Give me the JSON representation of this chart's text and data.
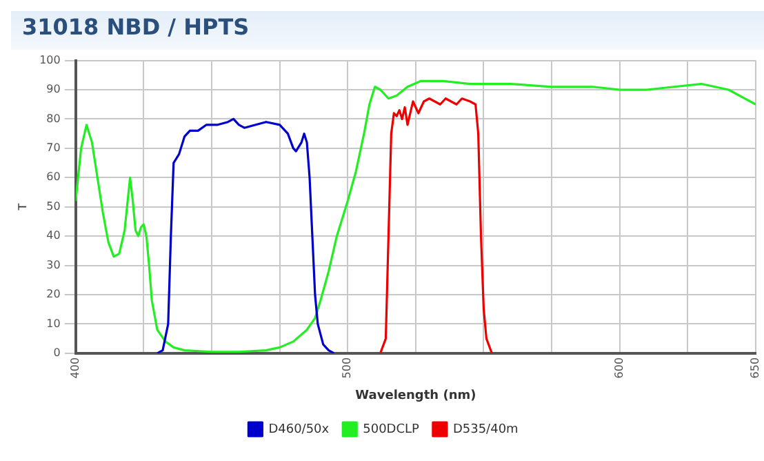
{
  "chart_data": {
    "type": "line",
    "title": "31018 NBD / HPTS",
    "xlabel": "Wavelength (nm)",
    "ylabel": "T",
    "xlim": [
      400,
      650
    ],
    "xticks": [
      400,
      {
        "value": 425,
        "label": null
      },
      {
        "value": 450,
        "label": null
      },
      {
        "value": 475,
        "label": null
      },
      500,
      {
        "value": 525,
        "label": null
      },
      {
        "value": 550,
        "label": null
      },
      {
        "value": 575,
        "label": null
      },
      600,
      {
        "value": 625,
        "label": null
      },
      650
    ],
    "ylim": [
      0,
      100
    ],
    "yticks": [
      0,
      10,
      20,
      30,
      40,
      50,
      60,
      70,
      80,
      90,
      100
    ],
    "grid": true,
    "legend": "bottom",
    "marker": "none",
    "line_style": "solid",
    "series": [
      {
        "name": "D460/50x",
        "color": "#0000cc",
        "x": [
          430,
          432,
          434,
          435,
          436,
          438,
          440,
          442,
          445,
          448,
          452,
          456,
          458,
          460,
          462,
          466,
          470,
          475,
          478,
          480,
          481,
          483,
          484,
          485,
          486,
          487,
          488,
          489,
          491,
          493,
          495
        ],
        "values": [
          0,
          1,
          10,
          40,
          65,
          68,
          74,
          76,
          76,
          78,
          78,
          79,
          80,
          78,
          77,
          78,
          79,
          78,
          75,
          70,
          69,
          72,
          75,
          72,
          60,
          40,
          20,
          10,
          3,
          1,
          0
        ]
      },
      {
        "name": "500DCLP",
        "color": "#22ee22",
        "x": [
          400,
          402,
          404,
          406,
          408,
          410,
          412,
          414,
          416,
          418,
          420,
          421,
          422,
          423,
          424,
          425,
          426,
          427,
          428,
          430,
          433,
          436,
          440,
          450,
          460,
          470,
          475,
          480,
          485,
          488,
          490,
          493,
          496,
          500,
          503,
          506,
          508,
          510,
          512,
          515,
          518,
          522,
          527,
          535,
          545,
          560,
          575,
          590,
          600,
          610,
          620,
          630,
          640,
          650
        ],
        "values": [
          52,
          70,
          78,
          72,
          60,
          48,
          38,
          33,
          34,
          42,
          60,
          52,
          42,
          40,
          43,
          44,
          40,
          30,
          18,
          8,
          4,
          2,
          1,
          0.5,
          0.5,
          1,
          2,
          4,
          8,
          12,
          18,
          28,
          40,
          52,
          62,
          75,
          85,
          91,
          90,
          87,
          88,
          91,
          93,
          93,
          92,
          92,
          91,
          91,
          90,
          90,
          91,
          92,
          90,
          85
        ]
      },
      {
        "name": "D535/40m",
        "color": "#ee0000",
        "x": [
          512,
          514,
          515,
          516,
          517,
          518,
          519,
          520,
          521,
          522,
          524,
          526,
          528,
          530,
          532,
          534,
          536,
          538,
          540,
          542,
          545,
          547,
          548,
          549,
          550,
          551,
          553
        ],
        "values": [
          0,
          5,
          40,
          75,
          82,
          81,
          83,
          80,
          84,
          78,
          86,
          82,
          86,
          87,
          86,
          85,
          87,
          86,
          85,
          87,
          86,
          85,
          75,
          40,
          15,
          5,
          0
        ]
      }
    ]
  }
}
